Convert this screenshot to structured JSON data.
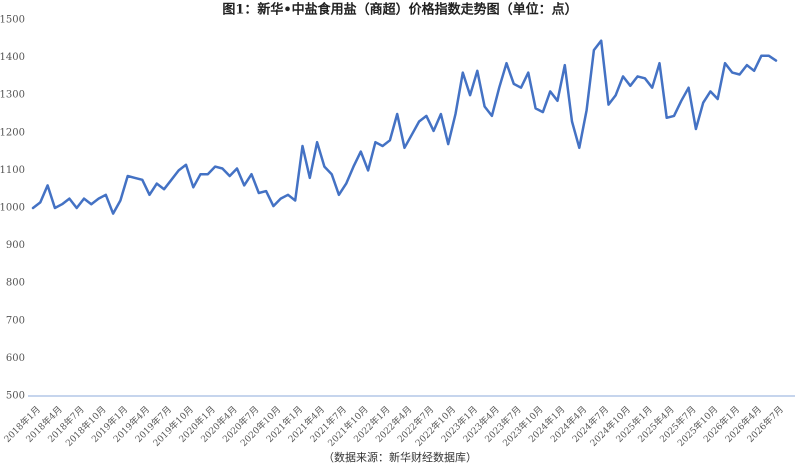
{
  "chart_data": {
    "type": "line",
    "title": "图1：新华•中盐食用盐（商超）价格指数走势图（单位：点）",
    "source": "（数据来源：新华财经数据库）",
    "categories": [
      "2018年1月",
      null,
      null,
      "2018年4月",
      null,
      null,
      "2018年7月",
      null,
      null,
      "2018年10月",
      null,
      null,
      "2019年1月",
      null,
      null,
      "2019年4月",
      null,
      null,
      "2019年7月",
      null,
      null,
      "2019年10月",
      null,
      null,
      "2020年1月",
      null,
      null,
      "2020年4月",
      null,
      null,
      "2020年7月",
      null,
      null,
      "2020年10月",
      null,
      null,
      "2021年1月",
      null,
      null,
      "2021年4月",
      null,
      null,
      "2021年7月",
      null,
      null,
      "2021年10月",
      null,
      null,
      "2022年1月",
      null,
      null,
      "2022年4月",
      null,
      null,
      "2022年7月",
      null,
      null,
      "2022年10月",
      null,
      null,
      "2023年1月",
      null,
      null,
      "2023年4月",
      null,
      null,
      "2023年7月",
      null,
      null,
      "2023年10月",
      null,
      null,
      "2024年1月",
      null,
      null,
      "2024年4月",
      null,
      null,
      "2024年7月",
      null,
      null,
      "2024年10月",
      null,
      null,
      "2025年1月",
      null,
      null,
      "2025年4月",
      null,
      null,
      "2025年7月",
      null,
      null,
      "2025年10月",
      null,
      null,
      "2026年1月",
      null,
      null,
      "2026年4月",
      null,
      null,
      "2026年7月"
    ],
    "series": [
      {
        "color": "#4472c4",
        "values": [
          1000,
          1015,
          1060,
          1000,
          1010,
          1025,
          1000,
          1025,
          1010,
          1025,
          1035,
          985,
          1020,
          1085,
          1080,
          1075,
          1035,
          1065,
          1050,
          1075,
          1100,
          1115,
          1055,
          1090,
          1090,
          1110,
          1105,
          1085,
          1105,
          1060,
          1090,
          1040,
          1045,
          1005,
          1025,
          1035,
          1020,
          1165,
          1080,
          1175,
          1110,
          1090,
          1035,
          1065,
          1110,
          1150,
          1100,
          1175,
          1165,
          1180,
          1250,
          1160,
          1195,
          1230,
          1245,
          1205,
          1250,
          1170,
          1250,
          1360,
          1300,
          1365,
          1270,
          1245,
          1320,
          1385,
          1330,
          1320,
          1360,
          1265,
          1255,
          1310,
          1285,
          1380,
          1230,
          1160,
          1260,
          1420,
          1445,
          1275,
          1300,
          1350,
          1325,
          1350,
          1345,
          1320,
          1385,
          1240,
          1245,
          1285,
          1320,
          1210,
          1280,
          1310,
          1290,
          1385,
          1360,
          1355,
          1380,
          1365,
          1405,
          1405,
          1392
        ]
      }
    ],
    "ylim": [
      500,
      1500
    ],
    "yticks": [
      500,
      600,
      700,
      800,
      900,
      1000,
      1100,
      1200,
      1300,
      1400,
      1500
    ],
    "grid": false
  }
}
